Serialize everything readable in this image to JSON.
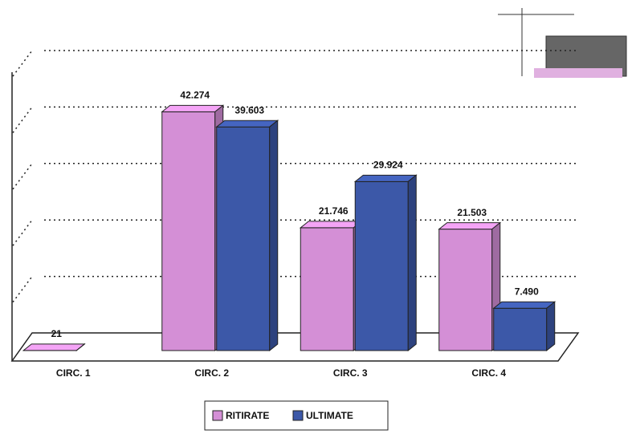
{
  "chart_data": {
    "type": "bar3d",
    "categories": [
      "CIRC. 1",
      "CIRC. 2",
      "CIRC. 3",
      "CIRC. 4"
    ],
    "series": [
      {
        "name": "RITIRATE",
        "color": "#d48fd6",
        "values": [
          21,
          42274,
          21746,
          21503
        ],
        "value_labels": [
          "21",
          "42.274",
          "21.746",
          "21.503"
        ]
      },
      {
        "name": "ULTIMATE",
        "color": "#3c58a8",
        "values": [
          null,
          39603,
          29924,
          7490
        ],
        "value_labels": [
          null,
          "39.603",
          "29.924",
          "7.490"
        ]
      }
    ],
    "ylim": [
      0,
      50000
    ],
    "yticks": [
      0,
      10000,
      20000,
      30000,
      40000,
      50000
    ],
    "grid": true,
    "legend": "bottom"
  }
}
